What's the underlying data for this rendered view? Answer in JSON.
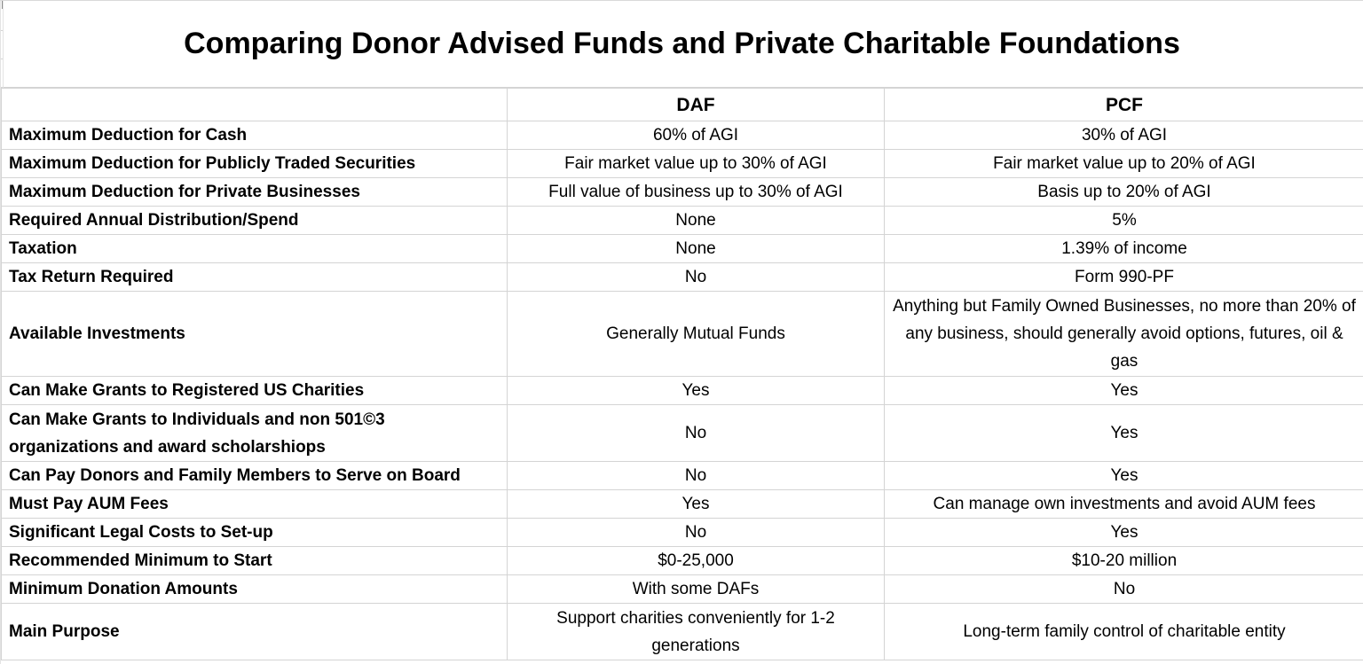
{
  "title": "Comparing Donor Advised Funds and Private Charitable Foundations",
  "colors": {
    "grid": "#d4d4d4",
    "text": "#000000",
    "background": "#ffffff"
  },
  "table": {
    "columns": [
      "",
      "DAF",
      "PCF"
    ],
    "rows": [
      {
        "label": "Maximum Deduction for Cash",
        "daf": "60% of AGI",
        "pcf": "30% of AGI"
      },
      {
        "label": "Maximum Deduction for Publicly Traded Securities",
        "daf": "Fair market value up to 30% of AGI",
        "pcf": "Fair market value up to 20% of AGI"
      },
      {
        "label": "Maximum Deduction for Private Businesses",
        "daf": "Full value of business up to 30% of AGI",
        "pcf": "Basis up to 20% of AGI"
      },
      {
        "label": "Required Annual Distribution/Spend",
        "daf": "None",
        "pcf": "5%"
      },
      {
        "label": "Taxation",
        "daf": "None",
        "pcf": "1.39% of income"
      },
      {
        "label": "Tax Return Required",
        "daf": "No",
        "pcf": "Form 990-PF"
      },
      {
        "label": "Available Investments",
        "daf": "Generally Mutual Funds",
        "pcf": "Anything but Family Owned Businesses, no more than 20% of any business, should generally avoid options, futures, oil & gas"
      },
      {
        "label": "Can Make Grants to Registered US Charities",
        "daf": "Yes",
        "pcf": "Yes"
      },
      {
        "label": "Can Make Grants to Individuals and non 501©3 organizations and award scholarshiops",
        "daf": "No",
        "pcf": "Yes"
      },
      {
        "label": "Can Pay Donors and Family Members to Serve on Board",
        "daf": "No",
        "pcf": "Yes"
      },
      {
        "label": "Must Pay AUM Fees",
        "daf": "Yes",
        "pcf": "Can manage own investments and avoid AUM fees"
      },
      {
        "label": "Significant Legal Costs to Set-up",
        "daf": "No",
        "pcf": "Yes"
      },
      {
        "label": "Recommended Minimum to Start",
        "daf": "$0-25,000",
        "pcf": "$10-20 million"
      },
      {
        "label": "Minimum Donation Amounts",
        "daf": "With some DAFs",
        "pcf": "No"
      },
      {
        "label": "Main Purpose",
        "daf": "Support charities conveniently for 1-2 generations",
        "pcf": "Long-term family control of charitable entity"
      }
    ]
  }
}
